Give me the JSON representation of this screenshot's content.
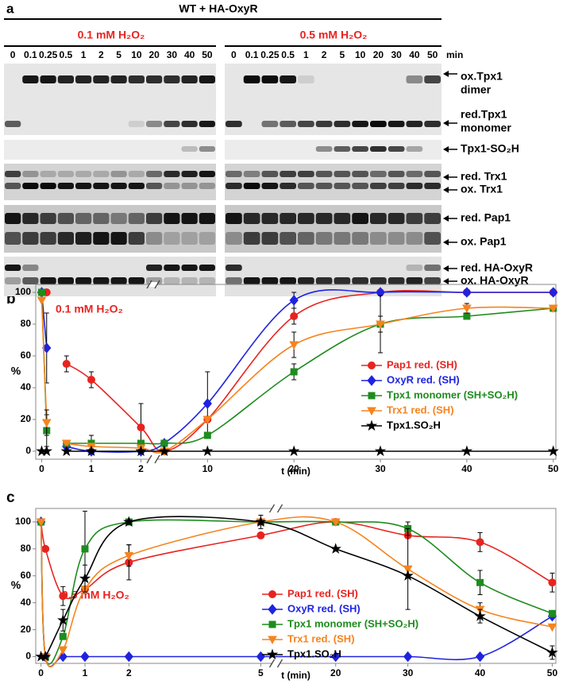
{
  "panel_labels": [
    "a",
    "b",
    "c"
  ],
  "blot": {
    "title": "WT + HA-OxyR",
    "conditions": [
      "0.1 mM H₂O₂",
      "0.5 mM H₂O₂"
    ],
    "times_left": [
      "0",
      "0.1",
      "0.25",
      "0.5",
      "1",
      "2",
      "5",
      "10",
      "20",
      "30",
      "40",
      "50"
    ],
    "times_right": [
      "0",
      "0.1",
      "0.25",
      "0.5",
      "1",
      "2",
      "5",
      "10",
      "20",
      "30",
      "40",
      "50"
    ],
    "unit": "min",
    "bands": [
      [
        "ox.Tpx1",
        "dimer"
      ],
      [
        "red.Tpx1",
        "monomer"
      ],
      [
        "Tpx1-SO₂H"
      ],
      [
        "red. Trx1"
      ],
      [
        "ox. Trx1"
      ],
      [
        "red. Pap1"
      ],
      [
        "ox. Pap1"
      ],
      [
        "red. HA-OxyR"
      ],
      [
        "ox. HA-OxyR"
      ]
    ]
  },
  "chart_data": [
    {
      "type": "line",
      "annotation": "0.1 mM H₂O₂",
      "ylabel": "%",
      "xlabel": "t (min)",
      "x": [
        0,
        0.1,
        0.25,
        0.5,
        1,
        2,
        5,
        10,
        20,
        30,
        40,
        50
      ],
      "xlim": [
        [
          -0.12,
          2.2
        ],
        [
          4,
          50.3
        ]
      ],
      "xticks": [
        0,
        1,
        2,
        10,
        20,
        30,
        40,
        50
      ],
      "ylim": [
        -5,
        105
      ],
      "yticks": [
        0,
        20,
        40,
        60,
        80,
        100
      ],
      "series": [
        {
          "name": "Pap1 red. (SH)",
          "color": "#e8231f",
          "marker": "circle",
          "values": [
            100,
            100,
            null,
            55,
            45,
            15,
            0,
            20,
            85,
            100,
            100,
            100
          ],
          "errors": [
            null,
            null,
            null,
            5,
            5,
            15,
            null,
            null,
            5,
            null,
            null,
            null
          ]
        },
        {
          "name": "OxyR red. (SH)",
          "color": "#1f23e0",
          "marker": "diamond",
          "values": [
            100,
            65,
            null,
            3,
            0,
            0,
            5,
            30,
            95,
            100,
            100,
            100
          ],
          "errors": [
            null,
            22,
            null,
            null,
            null,
            null,
            null,
            20,
            5,
            null,
            null,
            null
          ]
        },
        {
          "name": "Tpx1 monomer (SH+SO₂H)",
          "color": "#1e8c1e",
          "marker": "square",
          "values": [
            100,
            13,
            null,
            5,
            5,
            5,
            5,
            10,
            50,
            80,
            85,
            90
          ],
          "errors": [
            null,
            10,
            null,
            null,
            5,
            null,
            null,
            null,
            5,
            5,
            null,
            null
          ]
        },
        {
          "name": "Trx1 red. (SH)",
          "color": "#f5841f",
          "marker": "triangle",
          "values": [
            95,
            18,
            null,
            5,
            3,
            2,
            0,
            20,
            67,
            80,
            90,
            90
          ],
          "errors": [
            null,
            8,
            null,
            null,
            null,
            null,
            null,
            null,
            8,
            18,
            3,
            null
          ]
        },
        {
          "name": "Tpx1.SO₂H",
          "color": "#000000",
          "marker": "star",
          "values": [
            0,
            0,
            null,
            0,
            0,
            0,
            0,
            0,
            0,
            0,
            0,
            0
          ],
          "errors": [
            null,
            null,
            null,
            null,
            null,
            null,
            null,
            null,
            null,
            null,
            null,
            null
          ]
        }
      ]
    },
    {
      "type": "line",
      "annotation": "0.5 mM H₂O₂",
      "ylabel": "%",
      "xlabel": "t (min)",
      "x": [
        0,
        0.1,
        0.5,
        1,
        2,
        5,
        20,
        30,
        40,
        50
      ],
      "xlim": [
        [
          -0.12,
          5.3
        ],
        [
          12,
          50.5
        ]
      ],
      "xticks": [
        0,
        1,
        2,
        5,
        20,
        30,
        40,
        50
      ],
      "ylim": [
        -5,
        110
      ],
      "yticks": [
        0,
        20,
        40,
        60,
        80,
        100
      ],
      "series": [
        {
          "name": "Pap1 red. (SH)",
          "color": "#e8231f",
          "marker": "circle",
          "values": [
            100,
            80,
            45,
            50,
            70,
            90,
            100,
            90,
            85,
            55
          ],
          "errors": [
            null,
            null,
            7,
            null,
            13,
            null,
            null,
            null,
            7,
            7
          ]
        },
        {
          "name": "OxyR red. (SH)",
          "color": "#1f23e0",
          "marker": "diamond",
          "values": [
            100,
            0,
            0,
            0,
            0,
            0,
            0,
            0,
            0,
            30
          ],
          "errors": [
            null,
            null,
            null,
            null,
            null,
            null,
            null,
            null,
            null,
            null
          ]
        },
        {
          "name": "Tpx1 monomer (SH+SO₂H)",
          "color": "#1e8c1e",
          "marker": "square",
          "values": [
            100,
            0,
            15,
            80,
            100,
            100,
            100,
            95,
            55,
            32
          ],
          "errors": [
            null,
            null,
            null,
            28,
            null,
            null,
            null,
            5,
            9,
            null
          ]
        },
        {
          "name": "Trx1 red. (SH)",
          "color": "#f5841f",
          "marker": "triangle",
          "values": [
            100,
            0,
            5,
            50,
            75,
            100,
            100,
            65,
            35,
            22
          ],
          "errors": [
            null,
            null,
            null,
            null,
            8,
            null,
            null,
            30,
            5,
            null
          ]
        },
        {
          "name": "Tpx1.SO₂H",
          "color": "#000000",
          "marker": "star",
          "values": [
            0,
            0,
            27,
            58,
            100,
            100,
            80,
            60,
            30,
            3
          ],
          "errors": [
            null,
            null,
            8,
            10,
            null,
            5,
            null,
            null,
            5,
            5
          ]
        }
      ]
    }
  ]
}
